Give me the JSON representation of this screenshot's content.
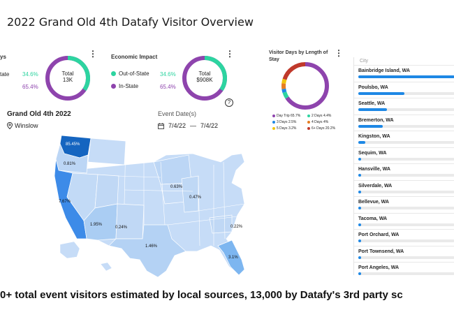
{
  "title": "2022 Grand Old 4th Datafy Visitor Overview",
  "visitor_days_card": {
    "title_fragment": "ys",
    "row1_fragment": "tate",
    "out_pct": "34.6%",
    "in_pct": "65.4%",
    "center_label": "Total",
    "center_value": "13K"
  },
  "economic_card": {
    "title": "Economic Impact",
    "legend": [
      {
        "label": "Out-of-State",
        "value": "34.6%",
        "color": "#2dd4a0"
      },
      {
        "label": "In-State",
        "value": "65.4%",
        "color": "#8e44ad"
      }
    ],
    "center_label": "Total",
    "center_value": "$908K"
  },
  "los_card": {
    "title": "Visitor Days by Length of Stay",
    "legend": [
      {
        "label": "Day Trip 65.7%",
        "color": "#8e44ad"
      },
      {
        "label": "2 Days 4.4%",
        "color": "#2dd4a0"
      },
      {
        "label": "3 Days 2.5%",
        "color": "#1e88e5"
      },
      {
        "label": "4 Days 4%",
        "color": "#e67e22"
      },
      {
        "label": "5 Days 3.2%",
        "color": "#f1c40f"
      },
      {
        "label": "6+ Days 20.2%",
        "color": "#c0392b"
      }
    ]
  },
  "event": {
    "name": "Grand Old 4th 2022",
    "location": "Winslow",
    "date_label": "Event Date(s)",
    "start": "7/4/22",
    "separator": "—",
    "end": "7/4/22"
  },
  "map_labels": {
    "wa": "85.45%",
    "or": "0.81%",
    "ca": "7.67%",
    "az": "1.95%",
    "nm": "0.24%",
    "tx": "1.46%",
    "mn": "0.63%",
    "il": "0.47%",
    "va": "0.22%",
    "fl": "3.1%"
  },
  "city_panel": {
    "header": "City",
    "rows": [
      {
        "name": "Bainbridge Island, WA",
        "pct": 1.0
      },
      {
        "name": "Poulsbo, WA",
        "pct": 0.48
      },
      {
        "name": "Seattle, WA",
        "pct": 0.3
      },
      {
        "name": "Bremerton, WA",
        "pct": 0.25
      },
      {
        "name": "Kingston, WA",
        "pct": 0.07
      },
      {
        "name": "Sequim, WA",
        "pct": 0.03
      },
      {
        "name": "Hansville, WA",
        "pct": 0.03
      },
      {
        "name": "Silverdale, WA",
        "pct": 0.03
      },
      {
        "name": "Bellevue, WA",
        "pct": 0.03
      },
      {
        "name": "Tacoma, WA",
        "pct": 0.03
      },
      {
        "name": "Port Orchard, WA",
        "pct": 0.02
      },
      {
        "name": "Port Townsend, WA",
        "pct": 0.02
      },
      {
        "name": "Port Angeles, WA",
        "pct": 0.02
      }
    ]
  },
  "footer": "0+ total event visitors estimated by local sources, 13,000 by Datafy's 3rd party sc"
}
